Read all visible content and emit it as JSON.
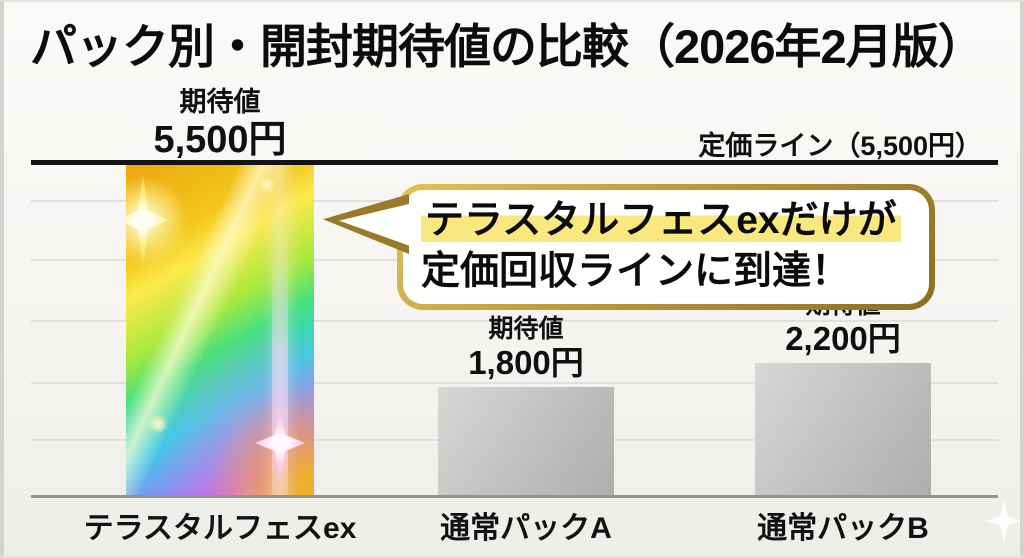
{
  "title": "パック別・開封期待値の比較（2026年2月版）",
  "price_line": {
    "label": "定価ライン（5,500円）",
    "value": 5500
  },
  "callout": {
    "line1": "テラスタルフェスexだけが",
    "line2": "定価回収ラインに到達！"
  },
  "bars": [
    {
      "name": "テラスタルフェスex",
      "value_caption": "期待値",
      "value_label": "5,500円",
      "value": 5500,
      "style": "rainbow"
    },
    {
      "name": "通常パックA",
      "value_caption": "期待値",
      "value_label": "1,800円",
      "value": 1800,
      "style": "gray"
    },
    {
      "name": "通常パックB",
      "value_caption": "期待値",
      "value_label": "2,200円",
      "value": 2200,
      "style": "gray"
    }
  ],
  "chart_data": {
    "type": "bar",
    "title": "パック別・開封期待値の比較（2026年2月版）",
    "categories": [
      "テラスタルフェスex",
      "通常パックA",
      "通常パックB"
    ],
    "values": [
      5500,
      1800,
      2200
    ],
    "value_labels": [
      "期待値 5,500円",
      "期待値 1,800円",
      "期待値 2,200円"
    ],
    "unit": "円",
    "ylim": [
      0,
      5500
    ],
    "reference_line": {
      "label": "定価ライン（5,500円）",
      "value": 5500
    },
    "grid": "horizontal",
    "annotation": "テラスタルフェスexだけが定価回収ラインに到達！"
  },
  "colors": {
    "reference_line": "#141414",
    "bubble_border_gold": "#bb9a3c",
    "highlight_yellow": "#f8e87d",
    "gray_bar": "#c6c4c2",
    "background": "#f6f4f1"
  },
  "icons": {
    "corner_sparkle": "four-point-sparkle"
  }
}
